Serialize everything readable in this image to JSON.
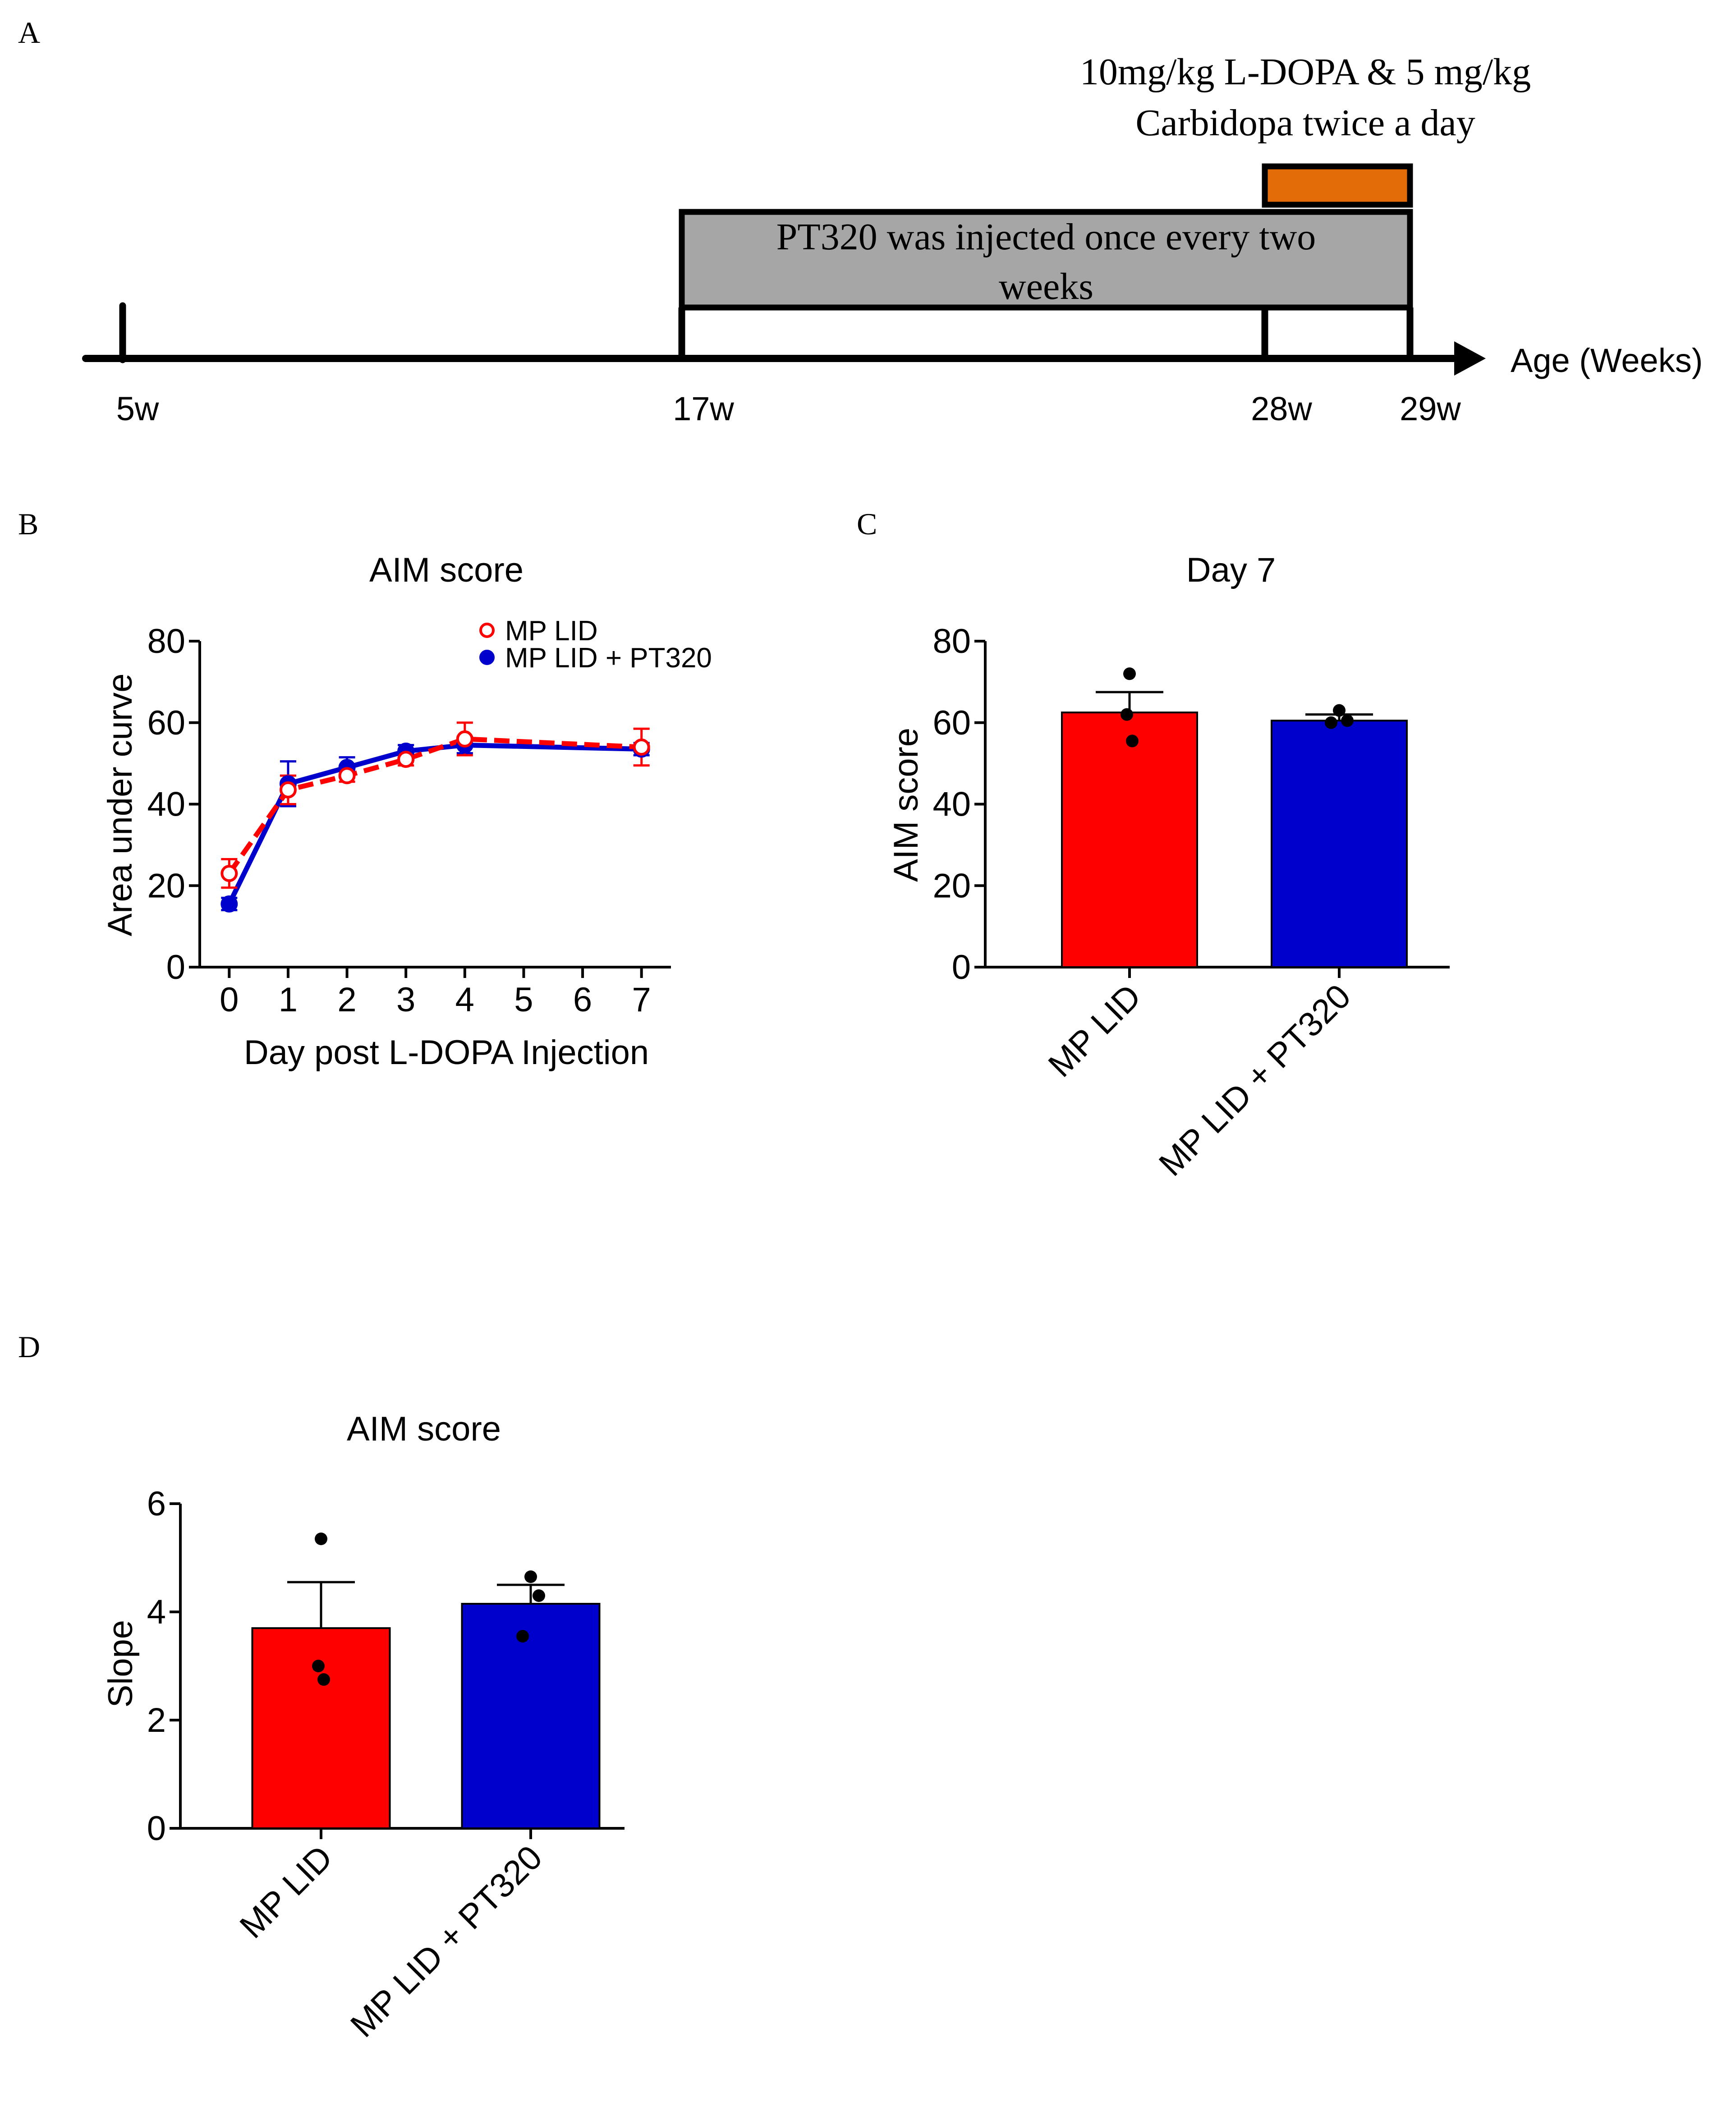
{
  "panels": {
    "a": {
      "letter": "A"
    },
    "b": {
      "letter": "B"
    },
    "c": {
      "letter": "C"
    },
    "d": {
      "letter": "D"
    }
  },
  "timeline": {
    "treatment_line1": "10mg/kg L-DOPA & 5 mg/kg",
    "treatment_line2": "Carbidopa twice a day",
    "injection_line1": "PT320  was injected once every two",
    "injection_line2": "weeks",
    "axis_label": "Age (Weeks)",
    "ticks": [
      "5w",
      "17w",
      "28w",
      "29w"
    ],
    "colors": {
      "treatment_bar": "#E36C09",
      "injection_bar": "#A6A6A6",
      "axis": "#000000"
    }
  },
  "chart_data": [
    {
      "panel": "B",
      "type": "line",
      "title": "AIM score",
      "xlabel": "Day post L-DOPA Injection",
      "ylabel": "Area under curve",
      "xlim": [
        -0.5,
        7.5
      ],
      "ylim": [
        0,
        80
      ],
      "xticks": [
        "0",
        "1",
        "2",
        "3",
        "4",
        "5",
        "6",
        "7"
      ],
      "yticks": [
        "0",
        "20",
        "40",
        "60",
        "80"
      ],
      "legend_position": "top-right",
      "series": [
        {
          "name": "MP LID",
          "color": "#FF0000",
          "style": "dashed",
          "marker": "open-circle",
          "x": [
            0,
            1,
            2,
            3,
            4,
            7
          ],
          "y": [
            23,
            43.5,
            47,
            51,
            56,
            54
          ],
          "err": [
            3.5,
            3.5,
            1.5,
            1.5,
            4,
            4.5
          ]
        },
        {
          "name": "MP LID + PT320",
          "color": "#0000CC",
          "style": "solid",
          "marker": "filled-circle",
          "x": [
            0,
            1,
            2,
            3,
            4,
            7
          ],
          "y": [
            15.5,
            45,
            49,
            53,
            54.5,
            53.5
          ],
          "err": [
            1.5,
            5.5,
            2.5,
            1.5,
            2,
            1.5
          ]
        }
      ]
    },
    {
      "panel": "C",
      "type": "bar",
      "title": "Day 7",
      "ylabel": "AIM score",
      "ylim": [
        0,
        80
      ],
      "yticks": [
        "0",
        "20",
        "40",
        "60",
        "80"
      ],
      "categories": [
        "MP LID",
        "MP LID + PT320"
      ],
      "values": [
        62.5,
        60.5
      ],
      "errors": [
        5,
        1.5
      ],
      "points": [
        [
          72,
          62,
          55.5
        ],
        [
          63,
          60.5,
          60
        ]
      ],
      "colors": [
        "#FF0000",
        "#0000CC"
      ]
    },
    {
      "panel": "D",
      "type": "bar",
      "title": "AIM score",
      "ylabel": "Slope",
      "ylim": [
        0,
        6
      ],
      "yticks": [
        "0",
        "2",
        "4",
        "6"
      ],
      "categories": [
        "MP LID",
        "MP LID + PT320"
      ],
      "values": [
        3.7,
        4.15
      ],
      "errors": [
        0.85,
        0.35
      ],
      "points": [
        [
          5.35,
          3.0,
          2.75
        ],
        [
          4.65,
          4.3,
          3.55
        ]
      ],
      "colors": [
        "#FF0000",
        "#0000CC"
      ]
    }
  ]
}
